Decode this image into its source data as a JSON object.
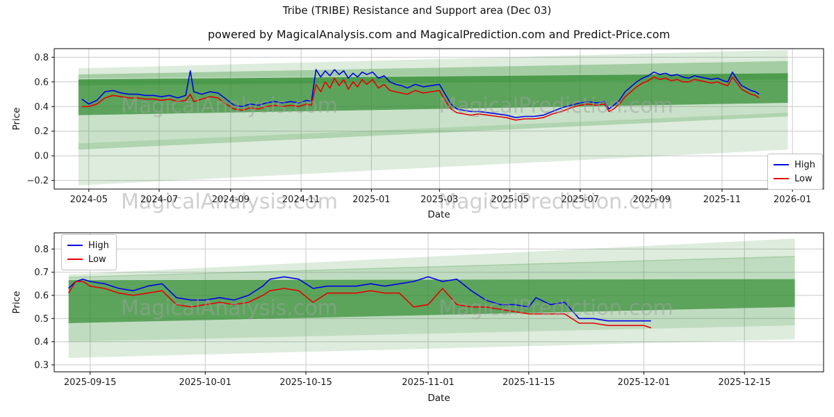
{
  "figure": {
    "title": "Tribe (TRIBE) Resistance and Support area (Dec 03)",
    "subtitle": "powered by MagicalAnalysis.com and MagicalPrediction.com and Predict-Price.com"
  },
  "watermark": {
    "left": "MagicalAnalysis.com",
    "right": "MagicalPrediction.com",
    "color": "#a0a0a0"
  },
  "legend": {
    "high_label": "High",
    "low_label": "Low"
  },
  "colors": {
    "high": "#0000e6",
    "low": "#e60000",
    "band": "#2e8b2e",
    "grid": "#c9c9c9",
    "axis": "#000000"
  },
  "chart_data": [
    {
      "type": "line",
      "title": "powered by MagicalAnalysis.com and MagicalPrediction.com and Predict-Price.com",
      "xlabel": "Date",
      "ylabel": "Price",
      "grid": true,
      "legend": [
        "High",
        "Low"
      ],
      "legend_loc": "center right",
      "x_domain": [
        "2024-04-01",
        "2026-01-28"
      ],
      "ylim": [
        -0.27,
        0.87
      ],
      "yticks": [
        -0.2,
        0.0,
        0.2,
        0.4,
        0.6,
        0.8
      ],
      "ytick_labels": [
        "−0.2",
        "0.0",
        "0.2",
        "0.4",
        "0.6",
        "0.8"
      ],
      "xticks": [
        "2024-05-01",
        "2024-07-01",
        "2024-09-01",
        "2024-11-01",
        "2025-01-01",
        "2025-03-01",
        "2025-05-01",
        "2025-07-01",
        "2025-09-01",
        "2025-11-01",
        "2026-01-01"
      ],
      "xtick_labels": [
        "2024-05",
        "2024-07",
        "2024-09",
        "2024-11",
        "2025-01",
        "2025-03",
        "2025-05",
        "2025-07",
        "2025-09",
        "2025-11",
        "2026-01"
      ],
      "x": [
        "2024-04-25",
        "2024-05-01",
        "2024-05-08",
        "2024-05-15",
        "2024-05-22",
        "2024-05-29",
        "2024-06-05",
        "2024-06-12",
        "2024-06-19",
        "2024-06-26",
        "2024-07-03",
        "2024-07-10",
        "2024-07-17",
        "2024-07-24",
        "2024-07-28",
        "2024-07-31",
        "2024-08-07",
        "2024-08-14",
        "2024-08-21",
        "2024-08-28",
        "2024-09-04",
        "2024-09-11",
        "2024-09-18",
        "2024-09-25",
        "2024-10-02",
        "2024-10-09",
        "2024-10-16",
        "2024-10-23",
        "2024-10-30",
        "2024-11-06",
        "2024-11-10",
        "2024-11-14",
        "2024-11-18",
        "2024-11-22",
        "2024-11-26",
        "2024-11-30",
        "2024-12-04",
        "2024-12-08",
        "2024-12-12",
        "2024-12-16",
        "2024-12-20",
        "2024-12-24",
        "2024-12-28",
        "2025-01-02",
        "2025-01-07",
        "2025-01-12",
        "2025-01-17",
        "2025-01-22",
        "2025-01-27",
        "2025-02-01",
        "2025-02-08",
        "2025-02-15",
        "2025-02-22",
        "2025-03-01",
        "2025-03-06",
        "2025-03-11",
        "2025-03-16",
        "2025-03-22",
        "2025-03-28",
        "2025-04-04",
        "2025-04-12",
        "2025-04-20",
        "2025-04-28",
        "2025-05-06",
        "2025-05-14",
        "2025-05-22",
        "2025-05-30",
        "2025-06-07",
        "2025-06-15",
        "2025-06-23",
        "2025-07-01",
        "2025-07-08",
        "2025-07-15",
        "2025-07-22",
        "2025-07-26",
        "2025-07-30",
        "2025-08-04",
        "2025-08-09",
        "2025-08-14",
        "2025-08-19",
        "2025-08-24",
        "2025-08-29",
        "2025-09-03",
        "2025-09-08",
        "2025-09-13",
        "2025-09-18",
        "2025-09-23",
        "2025-09-28",
        "2025-10-03",
        "2025-10-08",
        "2025-10-13",
        "2025-10-18",
        "2025-10-23",
        "2025-10-28",
        "2025-11-02",
        "2025-11-06",
        "2025-11-10",
        "2025-11-14",
        "2025-11-18",
        "2025-11-22",
        "2025-11-26",
        "2025-11-30",
        "2025-12-03"
      ],
      "series": [
        {
          "name": "High",
          "color": "#0000e6",
          "values": [
            0.46,
            0.42,
            0.45,
            0.52,
            0.53,
            0.51,
            0.5,
            0.5,
            0.49,
            0.49,
            0.48,
            0.49,
            0.47,
            0.49,
            0.69,
            0.52,
            0.5,
            0.52,
            0.51,
            0.46,
            0.41,
            0.4,
            0.42,
            0.41,
            0.43,
            0.44,
            0.43,
            0.44,
            0.43,
            0.45,
            0.44,
            0.7,
            0.64,
            0.69,
            0.65,
            0.7,
            0.66,
            0.69,
            0.63,
            0.67,
            0.64,
            0.68,
            0.66,
            0.68,
            0.63,
            0.65,
            0.6,
            0.58,
            0.57,
            0.55,
            0.58,
            0.56,
            0.57,
            0.58,
            0.5,
            0.42,
            0.38,
            0.37,
            0.36,
            0.36,
            0.35,
            0.34,
            0.33,
            0.31,
            0.32,
            0.32,
            0.33,
            0.36,
            0.39,
            0.41,
            0.43,
            0.44,
            0.43,
            0.44,
            0.38,
            0.41,
            0.45,
            0.52,
            0.56,
            0.6,
            0.63,
            0.65,
            0.68,
            0.66,
            0.67,
            0.65,
            0.66,
            0.64,
            0.63,
            0.65,
            0.64,
            0.63,
            0.62,
            0.63,
            0.61,
            0.6,
            0.68,
            0.62,
            0.57,
            0.55,
            0.53,
            0.52,
            0.5
          ]
        },
        {
          "name": "Low",
          "color": "#e60000",
          "values": [
            0.4,
            0.4,
            0.42,
            0.47,
            0.49,
            0.48,
            0.47,
            0.47,
            0.46,
            0.46,
            0.45,
            0.46,
            0.44,
            0.45,
            0.5,
            0.44,
            0.46,
            0.48,
            0.47,
            0.42,
            0.38,
            0.37,
            0.39,
            0.38,
            0.4,
            0.41,
            0.4,
            0.41,
            0.4,
            0.42,
            0.41,
            0.58,
            0.52,
            0.6,
            0.55,
            0.63,
            0.57,
            0.62,
            0.54,
            0.6,
            0.56,
            0.62,
            0.58,
            0.62,
            0.55,
            0.58,
            0.53,
            0.52,
            0.51,
            0.5,
            0.53,
            0.51,
            0.52,
            0.53,
            0.45,
            0.38,
            0.35,
            0.34,
            0.33,
            0.34,
            0.33,
            0.32,
            0.31,
            0.29,
            0.3,
            0.3,
            0.31,
            0.34,
            0.36,
            0.39,
            0.41,
            0.42,
            0.41,
            0.42,
            0.36,
            0.38,
            0.42,
            0.48,
            0.52,
            0.56,
            0.59,
            0.61,
            0.64,
            0.62,
            0.63,
            0.61,
            0.62,
            0.6,
            0.6,
            0.62,
            0.61,
            0.6,
            0.59,
            0.6,
            0.58,
            0.57,
            0.64,
            0.59,
            0.54,
            0.52,
            0.5,
            0.49,
            0.47
          ]
        }
      ],
      "bands": [
        {
          "x0": "2024-04-22",
          "x1": "2025-12-28",
          "top0": 0.1,
          "bottom0": -0.24,
          "top1": 0.35,
          "bottom1": 0.05,
          "alpha": 0.16
        },
        {
          "x0": "2024-04-22",
          "x1": "2025-12-28",
          "top0": 0.33,
          "bottom0": 0.05,
          "top1": 0.43,
          "bottom1": 0.32,
          "alpha": 0.26
        },
        {
          "x0": "2024-04-22",
          "x1": "2025-12-28",
          "top0": 0.62,
          "bottom0": 0.33,
          "top1": 0.67,
          "bottom1": 0.43,
          "alpha": 0.78
        },
        {
          "x0": "2024-04-22",
          "x1": "2025-12-28",
          "top0": 0.66,
          "bottom0": 0.57,
          "top1": 0.77,
          "bottom1": 0.62,
          "alpha": 0.32
        },
        {
          "x0": "2024-04-22",
          "x1": "2025-12-28",
          "top0": 0.71,
          "bottom0": 0.63,
          "top1": 0.86,
          "bottom1": 0.67,
          "alpha": 0.16
        }
      ]
    },
    {
      "type": "line",
      "title": "",
      "xlabel": "Date",
      "ylabel": "Price",
      "grid": true,
      "legend": [
        "High",
        "Low"
      ],
      "legend_loc": "upper left",
      "x_domain": [
        "2025-09-10",
        "2025-12-26"
      ],
      "ylim": [
        0.27,
        0.87
      ],
      "yticks": [
        0.3,
        0.4,
        0.5,
        0.6,
        0.7,
        0.8
      ],
      "ytick_labels": [
        "0.3",
        "0.4",
        "0.5",
        "0.6",
        "0.7",
        "0.8"
      ],
      "xticks": [
        "2025-09-15",
        "2025-10-01",
        "2025-10-15",
        "2025-11-01",
        "2025-11-15",
        "2025-12-01",
        "2025-12-15"
      ],
      "xtick_labels": [
        "2025-09-15",
        "2025-10-01",
        "2025-10-15",
        "2025-11-01",
        "2025-11-15",
        "2025-12-01",
        "2025-12-15"
      ],
      "x": [
        "2025-09-12",
        "2025-09-13",
        "2025-09-14",
        "2025-09-15",
        "2025-09-17",
        "2025-09-19",
        "2025-09-21",
        "2025-09-23",
        "2025-09-25",
        "2025-09-27",
        "2025-09-29",
        "2025-10-01",
        "2025-10-03",
        "2025-10-05",
        "2025-10-07",
        "2025-10-09",
        "2025-10-10",
        "2025-10-12",
        "2025-10-14",
        "2025-10-16",
        "2025-10-18",
        "2025-10-20",
        "2025-10-22",
        "2025-10-24",
        "2025-10-26",
        "2025-10-28",
        "2025-10-30",
        "2025-11-01",
        "2025-11-03",
        "2025-11-05",
        "2025-11-07",
        "2025-11-09",
        "2025-11-11",
        "2025-11-13",
        "2025-11-15",
        "2025-11-16",
        "2025-11-18",
        "2025-11-20",
        "2025-11-22",
        "2025-11-24",
        "2025-11-26",
        "2025-11-28",
        "2025-11-30",
        "2025-12-01",
        "2025-12-02"
      ],
      "series": [
        {
          "name": "High",
          "color": "#0000e6",
          "values": [
            0.63,
            0.66,
            0.67,
            0.66,
            0.65,
            0.63,
            0.62,
            0.64,
            0.65,
            0.59,
            0.58,
            0.58,
            0.59,
            0.58,
            0.6,
            0.64,
            0.67,
            0.68,
            0.67,
            0.63,
            0.64,
            0.64,
            0.64,
            0.65,
            0.64,
            0.65,
            0.66,
            0.68,
            0.66,
            0.67,
            0.62,
            0.58,
            0.56,
            0.56,
            0.55,
            0.59,
            0.56,
            0.57,
            0.5,
            0.5,
            0.49,
            0.49,
            0.49,
            0.49,
            0.49
          ]
        },
        {
          "name": "Low",
          "color": "#e60000",
          "values": [
            0.61,
            0.66,
            0.66,
            0.64,
            0.63,
            0.61,
            0.6,
            0.61,
            0.62,
            0.56,
            0.55,
            0.56,
            0.57,
            0.56,
            0.57,
            0.6,
            0.62,
            0.63,
            0.62,
            0.57,
            0.61,
            0.61,
            0.61,
            0.62,
            0.61,
            0.61,
            0.55,
            0.56,
            0.63,
            0.56,
            0.55,
            0.55,
            0.54,
            0.53,
            0.52,
            0.52,
            0.52,
            0.52,
            0.48,
            0.48,
            0.47,
            0.47,
            0.47,
            0.47,
            0.46
          ]
        }
      ],
      "bands": [
        {
          "x0": "2025-09-12",
          "x1": "2025-12-22",
          "top0": 0.4,
          "bottom0": 0.33,
          "top1": 0.47,
          "bottom1": 0.41,
          "alpha": 0.16
        },
        {
          "x0": "2025-09-12",
          "x1": "2025-12-22",
          "top0": 0.48,
          "bottom0": 0.4,
          "top1": 0.55,
          "bottom1": 0.47,
          "alpha": 0.3
        },
        {
          "x0": "2025-09-12",
          "x1": "2025-12-22",
          "top0": 0.665,
          "bottom0": 0.48,
          "top1": 0.67,
          "bottom1": 0.55,
          "alpha": 0.78
        },
        {
          "x0": "2025-09-12",
          "x1": "2025-12-22",
          "top0": 0.68,
          "bottom0": 0.662,
          "top1": 0.77,
          "bottom1": 0.668,
          "alpha": 0.3
        },
        {
          "x0": "2025-09-12",
          "x1": "2025-12-22",
          "top0": 0.69,
          "bottom0": 0.676,
          "top1": 0.845,
          "bottom1": 0.765,
          "alpha": 0.16
        }
      ]
    }
  ]
}
